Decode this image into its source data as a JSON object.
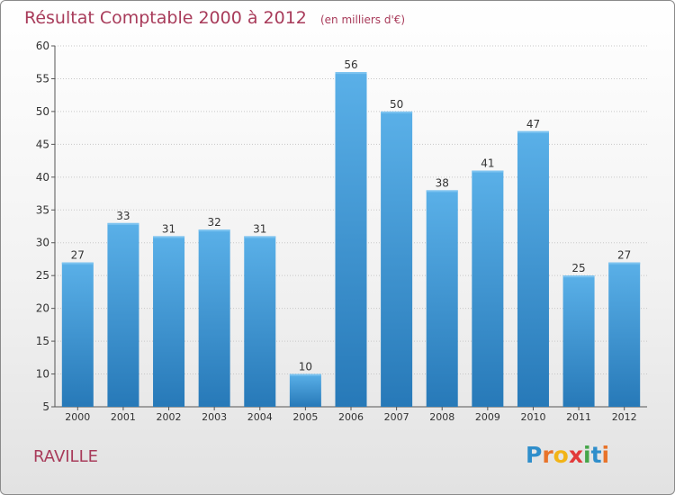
{
  "title": "Résultat Comptable 2000 à 2012",
  "unit": "(en milliers d'€)",
  "commune": "RAVILLE",
  "logo": {
    "letters": [
      "P",
      "r",
      "o",
      "x",
      "i",
      "t",
      "i"
    ],
    "colors": [
      "#2f8ecb",
      "#e8732a",
      "#f2b417",
      "#e23a3a",
      "#46a64a",
      "#2f8ecb",
      "#e8732a"
    ]
  },
  "colors": {
    "bar": "#3e97d8",
    "bar_light": "#5ab0e8",
    "bar_dark": "#2779b8",
    "text": "#333333",
    "accent": "#a83b5a"
  },
  "chart_data": {
    "type": "bar",
    "title": "Résultat Comptable 2000 à 2012",
    "subtitle": "(en milliers d'€)",
    "categories": [
      "2000",
      "2001",
      "2002",
      "2003",
      "2004",
      "2005",
      "2006",
      "2007",
      "2008",
      "2009",
      "2010",
      "2011",
      "2012"
    ],
    "values": [
      27,
      33,
      31,
      32,
      31,
      10,
      56,
      50,
      38,
      41,
      47,
      25,
      27
    ],
    "ylim": [
      5,
      60
    ],
    "yticks": [
      5,
      10,
      15,
      20,
      25,
      30,
      35,
      40,
      45,
      50,
      55,
      60
    ],
    "grid": true,
    "xlabel": "",
    "ylabel": ""
  }
}
